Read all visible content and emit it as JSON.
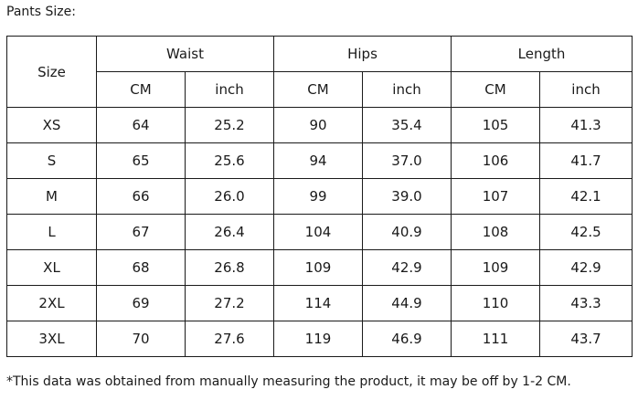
{
  "title": "Pants Size:",
  "table": {
    "size_header": "Size",
    "groups": [
      "Waist",
      "Hips",
      "Length"
    ],
    "units": [
      "CM",
      "inch",
      "CM",
      "inch",
      "CM",
      "inch"
    ],
    "rows": [
      {
        "size": "XS",
        "cells": [
          "64",
          "25.2",
          "90",
          "35.4",
          "105",
          "41.3"
        ]
      },
      {
        "size": "S",
        "cells": [
          "65",
          "25.6",
          "94",
          "37.0",
          "106",
          "41.7"
        ]
      },
      {
        "size": "M",
        "cells": [
          "66",
          "26.0",
          "99",
          "39.0",
          "107",
          "42.1"
        ]
      },
      {
        "size": "L",
        "cells": [
          "67",
          "26.4",
          "104",
          "40.9",
          "108",
          "42.5"
        ]
      },
      {
        "size": "XL",
        "cells": [
          "68",
          "26.8",
          "109",
          "42.9",
          "109",
          "42.9"
        ]
      },
      {
        "size": "2XL",
        "cells": [
          "69",
          "27.2",
          "114",
          "44.9",
          "110",
          "43.3"
        ]
      },
      {
        "size": "3XL",
        "cells": [
          "70",
          "27.6",
          "119",
          "46.9",
          "111",
          "43.7"
        ]
      }
    ]
  },
  "note": "*This data was obtained from manually measuring the product, it may be off by 1-2 CM."
}
